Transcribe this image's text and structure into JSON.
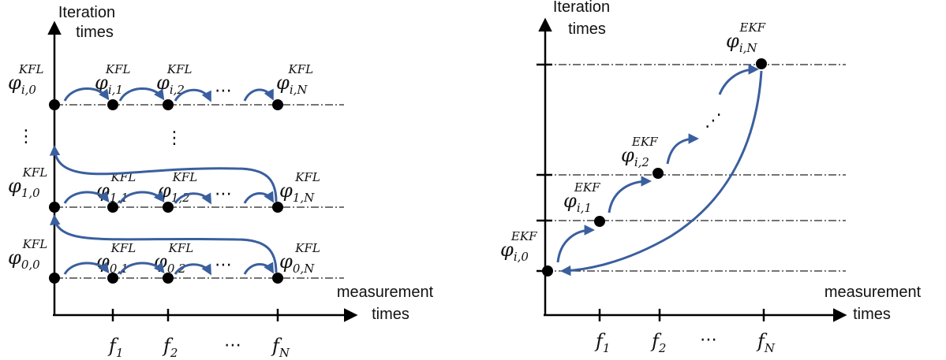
{
  "colors": {
    "arrow": "#3a5f9e",
    "axis": "#000000",
    "node": "#000000"
  },
  "left_panel": {
    "y_axis_label": [
      "Iteration",
      "times"
    ],
    "x_axis_label": [
      "measurement",
      "times"
    ],
    "x_ticks": [
      {
        "base": "f",
        "sub": "1"
      },
      {
        "base": "f",
        "sub": "2"
      },
      {
        "ellipsis": "⋯"
      },
      {
        "base": "f",
        "sub": "N"
      }
    ],
    "rows": [
      {
        "name": "row-i",
        "nodes": [
          {
            "sym": "φ",
            "sub": "i,0",
            "sup": "KFL"
          },
          {
            "sym": "φ",
            "sub": "i,1",
            "sup": "KFL"
          },
          {
            "sym": "φ",
            "sub": "i,2",
            "sup": "KFL"
          },
          {
            "sym": "φ",
            "sub": "i,N",
            "sup": "KFL"
          }
        ]
      },
      {
        "name": "row-1",
        "nodes": [
          {
            "sym": "φ",
            "sub": "1,0",
            "sup": "KFL"
          },
          {
            "sym": "φ",
            "sub": "1,1",
            "sup": "KFL"
          },
          {
            "sym": "φ",
            "sub": "1,2",
            "sup": "KFL"
          },
          {
            "sym": "φ",
            "sub": "1,N",
            "sup": "KFL"
          }
        ]
      },
      {
        "name": "row-0",
        "nodes": [
          {
            "sym": "φ",
            "sub": "0,0",
            "sup": "KFL"
          },
          {
            "sym": "φ",
            "sub": "0,1",
            "sup": "KFL"
          },
          {
            "sym": "φ",
            "sub": "0,2",
            "sup": "KFL"
          },
          {
            "sym": "φ",
            "sub": "0,N",
            "sup": "KFL"
          }
        ]
      }
    ],
    "row_ellipsis": "⋯",
    "vertical_ellipsis": "⋮"
  },
  "right_panel": {
    "y_axis_label": [
      "Iteration",
      "times"
    ],
    "x_axis_label": [
      "measurement",
      "times"
    ],
    "x_ticks": [
      {
        "base": "f",
        "sub": "1"
      },
      {
        "base": "f",
        "sub": "2"
      },
      {
        "ellipsis": "⋯"
      },
      {
        "base": "f",
        "sub": "N"
      }
    ],
    "nodes": [
      {
        "sym": "φ",
        "sub": "i,0",
        "sup": "EKF"
      },
      {
        "sym": "φ",
        "sub": "i,1",
        "sup": "EKF"
      },
      {
        "sym": "φ",
        "sub": "i,2",
        "sup": "EKF"
      },
      {
        "sym": "φ",
        "sub": "i,N",
        "sup": "EKF"
      }
    ],
    "diagonal_ellipsis": "⋰"
  }
}
